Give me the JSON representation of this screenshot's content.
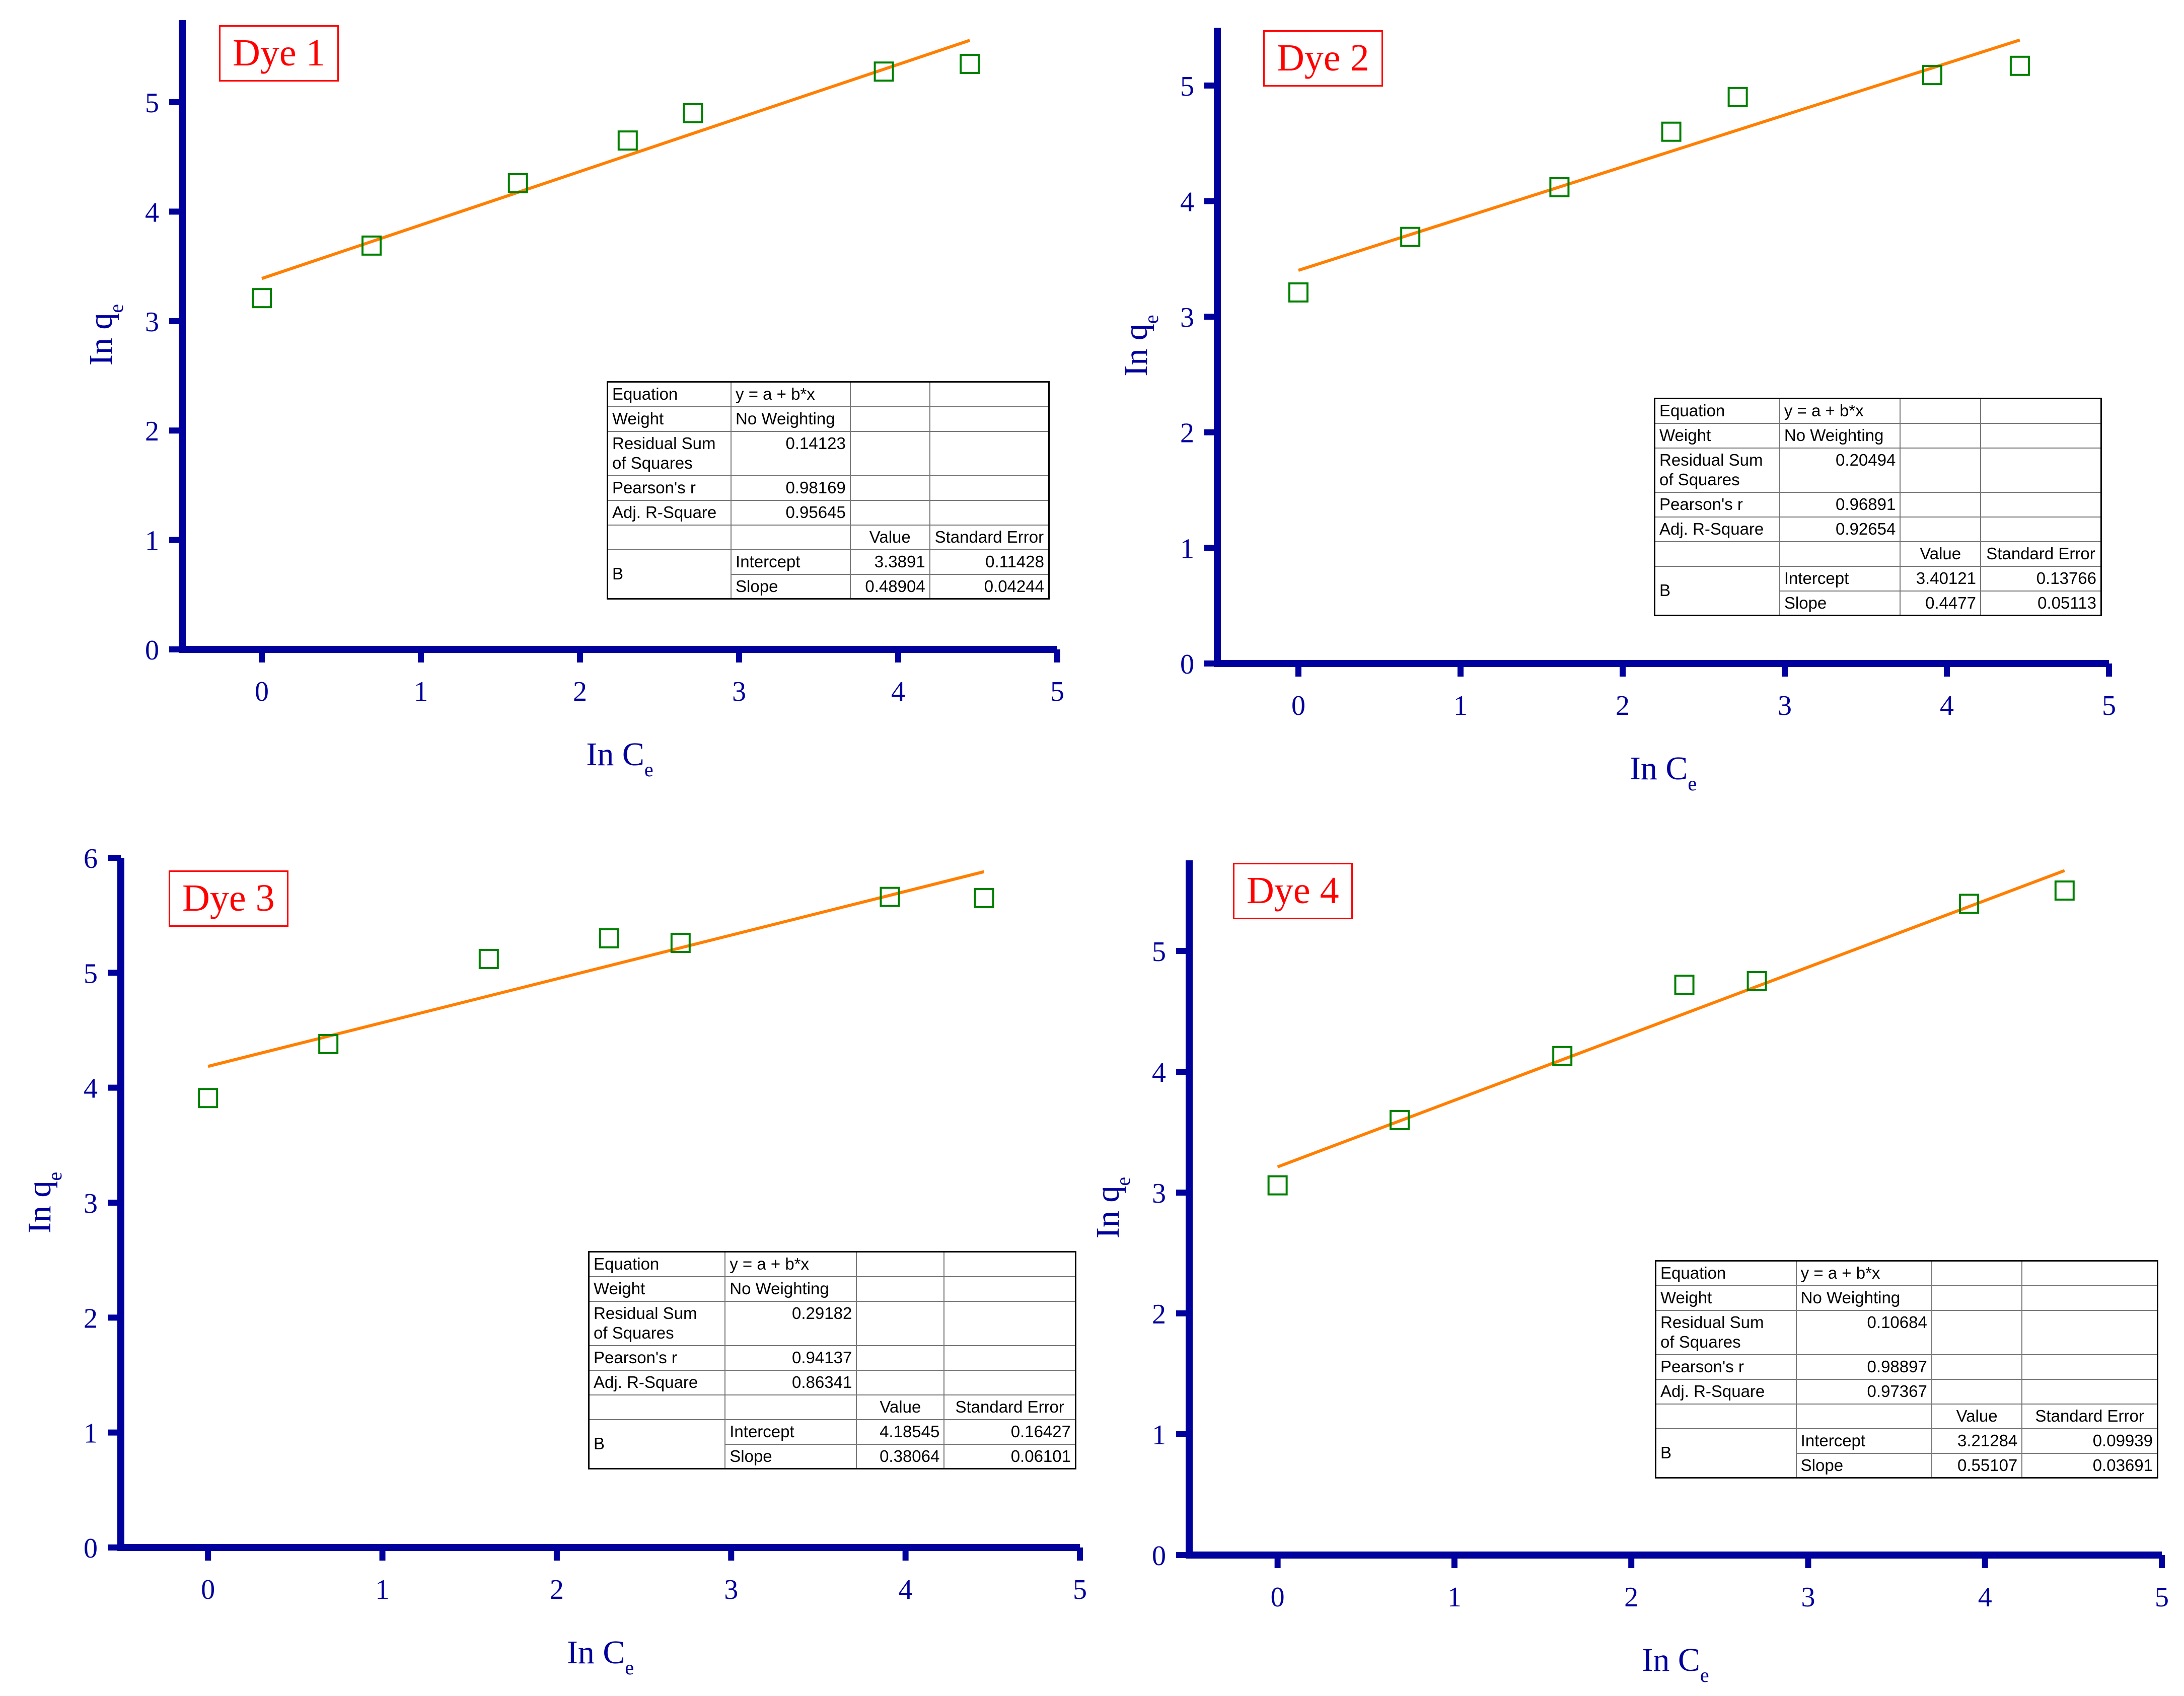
{
  "colors": {
    "axis": "#00009c",
    "fit_line": "#ff7f00",
    "marker": "#008000",
    "label_box": "#ff0000"
  },
  "chart_data": [
    {
      "type": "scatter",
      "label": "Dye 1",
      "xlabel": "In C",
      "xlabel_sub": "e",
      "ylabel": "In q",
      "ylabel_sub": "e",
      "xlim": [
        -0.5,
        5
      ],
      "ylim": [
        0,
        5.75
      ],
      "xticks": [
        "0",
        "1",
        "2",
        "3",
        "4",
        "5"
      ],
      "yticks": [
        "0",
        "1",
        "2",
        "3",
        "4",
        "5"
      ],
      "x": [
        0.0,
        0.69,
        1.61,
        2.3,
        2.71,
        3.91,
        4.45
      ],
      "y": [
        3.21,
        3.69,
        4.26,
        4.65,
        4.9,
        5.28,
        5.35
      ],
      "fit": {
        "intercept": 3.3891,
        "slope": 0.48904,
        "x_range": [
          0,
          4.45
        ]
      },
      "stats": {
        "equation_label": "Equation",
        "equation": "y = a + b*x",
        "weight_label": "Weight",
        "weight": "No Weighting",
        "rss_label_1": "Residual Sum",
        "rss_label_2": "of Squares",
        "rss": "0.14123",
        "pearson_label": "Pearson's r",
        "pearson": "0.98169",
        "adjr2_label": "Adj. R-Square",
        "adjr2": "0.95645",
        "value_header": "Value",
        "se_header": "Standard Error",
        "group": "B",
        "intercept_label": "Intercept",
        "intercept_value": "3.3891",
        "intercept_se": "0.11428",
        "slope_label": "Slope",
        "slope_value": "0.48904",
        "slope_se": "0.04244"
      }
    },
    {
      "type": "scatter",
      "label": "Dye 2",
      "xlabel": "In C",
      "xlabel_sub": "e",
      "ylabel": "In q",
      "ylabel_sub": "e",
      "xlim": [
        -0.5,
        5
      ],
      "ylim": [
        0,
        5.5
      ],
      "xticks": [
        "0",
        "1",
        "2",
        "3",
        "4",
        "5"
      ],
      "yticks": [
        "0",
        "1",
        "2",
        "3",
        "4",
        "5"
      ],
      "x": [
        0.0,
        0.69,
        1.61,
        2.3,
        2.71,
        3.91,
        4.45
      ],
      "y": [
        3.21,
        3.69,
        4.12,
        4.6,
        4.9,
        5.09,
        5.17
      ],
      "fit": {
        "intercept": 3.40121,
        "slope": 0.4477,
        "x_range": [
          0,
          4.45
        ]
      },
      "stats": {
        "equation_label": "Equation",
        "equation": "y = a + b*x",
        "weight_label": "Weight",
        "weight": "No Weighting",
        "rss_label_1": "Residual Sum",
        "rss_label_2": "of Squares",
        "rss": "0.20494",
        "pearson_label": "Pearson's r",
        "pearson": "0.96891",
        "adjr2_label": "Adj. R-Square",
        "adjr2": "0.92654",
        "value_header": "Value",
        "se_header": "Standard Error",
        "group": "B",
        "intercept_label": "Intercept",
        "intercept_value": "3.40121",
        "intercept_se": "0.13766",
        "slope_label": "Slope",
        "slope_value": "0.4477",
        "slope_se": "0.05113"
      }
    },
    {
      "type": "scatter",
      "label": "Dye 3",
      "xlabel": "In C",
      "xlabel_sub": "e",
      "ylabel": "In q",
      "ylabel_sub": "e",
      "xlim": [
        -0.5,
        5
      ],
      "ylim": [
        0,
        6
      ],
      "xticks": [
        "0",
        "1",
        "2",
        "3",
        "4",
        "5"
      ],
      "yticks": [
        "0",
        "1",
        "2",
        "3",
        "4",
        "5",
        "6"
      ],
      "x": [
        0.0,
        0.69,
        1.61,
        2.3,
        2.71,
        3.91,
        4.45
      ],
      "y": [
        3.91,
        4.38,
        5.12,
        5.3,
        5.26,
        5.66,
        5.65
      ],
      "fit": {
        "intercept": 4.18545,
        "slope": 0.38064,
        "x_range": [
          0,
          4.45
        ]
      },
      "stats": {
        "equation_label": "Equation",
        "equation": "y = a + b*x",
        "weight_label": "Weight",
        "weight": "No Weighting",
        "rss_label_1": "Residual Sum",
        "rss_label_2": "of Squares",
        "rss": "0.29182",
        "pearson_label": "Pearson's r",
        "pearson": "0.94137",
        "adjr2_label": "Adj. R-Square",
        "adjr2": "0.86341",
        "value_header": "Value",
        "se_header": "Standard Error",
        "group": "B",
        "intercept_label": "Intercept",
        "intercept_value": "4.18545",
        "intercept_se": "0.16427",
        "slope_label": "Slope",
        "slope_value": "0.38064",
        "slope_se": "0.06101"
      }
    },
    {
      "type": "scatter",
      "label": "Dye 4",
      "xlabel": "In C",
      "xlabel_sub": "e",
      "ylabel": "In q",
      "ylabel_sub": "e",
      "xlim": [
        -0.5,
        5
      ],
      "ylim": [
        0,
        5.75
      ],
      "xticks": [
        "0",
        "1",
        "2",
        "3",
        "4",
        "5"
      ],
      "yticks": [
        "0",
        "1",
        "2",
        "3",
        "4",
        "5"
      ],
      "x": [
        0.0,
        0.69,
        1.61,
        2.3,
        2.71,
        3.91,
        4.45
      ],
      "y": [
        3.06,
        3.6,
        4.13,
        4.72,
        4.75,
        5.39,
        5.5
      ],
      "fit": {
        "intercept": 3.21284,
        "slope": 0.55107,
        "x_range": [
          0,
          4.45
        ]
      },
      "stats": {
        "equation_label": "Equation",
        "equation": "y = a + b*x",
        "weight_label": "Weight",
        "weight": "No Weighting",
        "rss_label_1": "Residual Sum",
        "rss_label_2": "of Squares",
        "rss": "0.10684",
        "pearson_label": "Pearson's r",
        "pearson": "0.98897",
        "adjr2_label": "Adj. R-Square",
        "adjr2": "0.97367",
        "value_header": "Value",
        "se_header": "Standard Error",
        "group": "B",
        "intercept_label": "Intercept",
        "intercept_value": "3.21284",
        "intercept_se": "0.09939",
        "slope_label": "Slope",
        "slope_value": "0.55107",
        "slope_se": "0.03691"
      }
    }
  ]
}
